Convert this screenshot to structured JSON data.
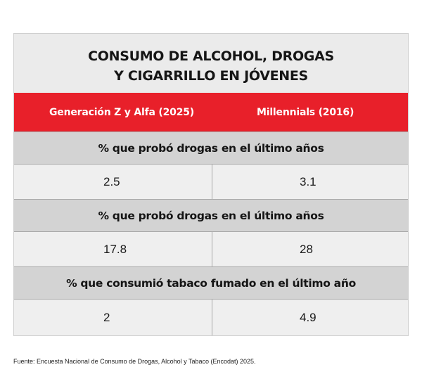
{
  "chart_data": {
    "type": "table",
    "title_lines": [
      "CONSUMO DE ALCOHOL, DROGAS",
      "Y CIGARRILLO EN JÓVENES"
    ],
    "columns": [
      "Generación Z y Alfa (2025)",
      "Millennials (2016)"
    ],
    "rows": [
      {
        "label": "% que probó drogas en el último años",
        "values": [
          "2.5",
          "3.1"
        ]
      },
      {
        "label": "% que probó drogas en el último años",
        "values": [
          "17.8",
          "28"
        ]
      },
      {
        "label": "% que consumió tabaco fumado en el último año",
        "values": [
          "2",
          "4.9"
        ]
      }
    ]
  },
  "footer": "Fuente: Encuesta Nacional de Consumo de Drogas, Alcohol y Tabaco (Encodat) 2025."
}
